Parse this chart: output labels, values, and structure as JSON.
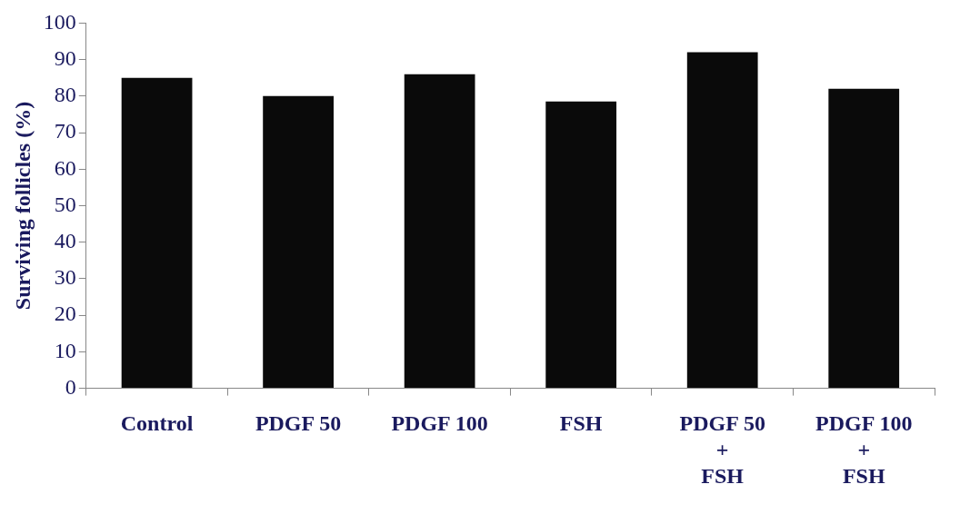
{
  "chart_data": {
    "type": "bar",
    "ylabel": "Surviving follicles (%)",
    "categories": [
      "Control",
      "PDGF 50",
      "PDGF 100",
      "FSH",
      "PDGF 50\n+\nFSH",
      "PDGF 100\n+\nFSH"
    ],
    "values": [
      85,
      80,
      86,
      78.5,
      92,
      82
    ],
    "color": "#0a0a0a",
    "ylim": [
      0,
      100
    ],
    "yticks": [
      0,
      10,
      20,
      30,
      40,
      50,
      60,
      70,
      80,
      90,
      100
    ],
    "grid": false,
    "legend": false
  }
}
